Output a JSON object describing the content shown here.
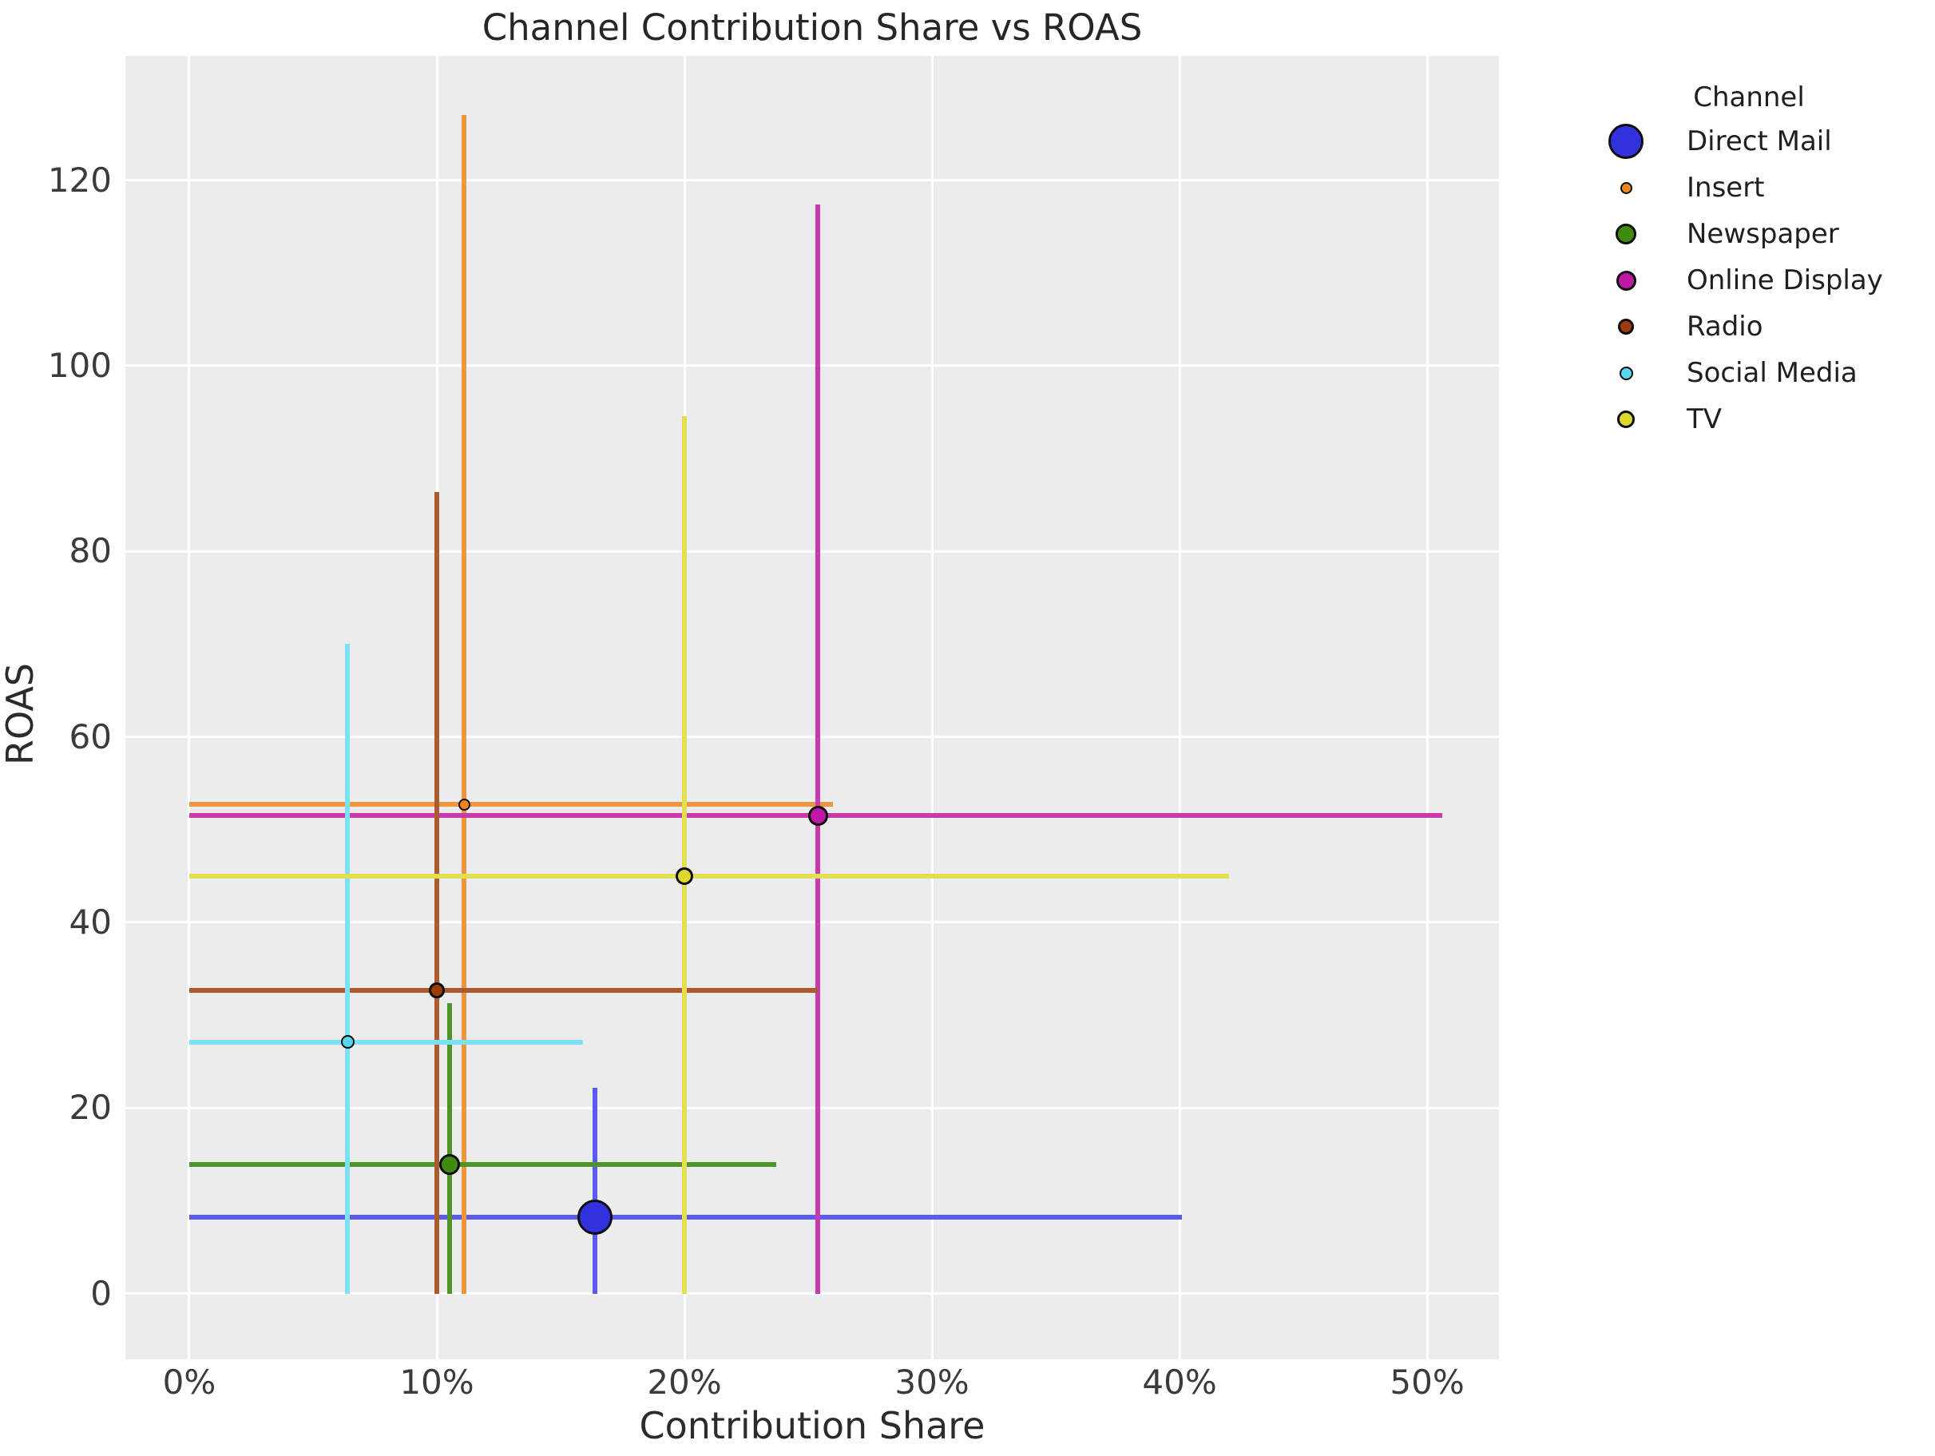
{
  "figure": {
    "background": "#ffffff",
    "plot_background": "#ececec",
    "grid_color": "#ffffff",
    "marker_edge_color": "#0d0d0d"
  },
  "chart_data": {
    "type": "scatter",
    "title": "Channel Contribution Share vs ROAS",
    "xlabel": "Contribution Share",
    "ylabel": "ROAS",
    "xlim": [
      -2.58,
      52.9
    ],
    "ylim": [
      -7.1,
      133.4
    ],
    "grid": true,
    "x_ticks": [
      {
        "value": 0,
        "label": "0%"
      },
      {
        "value": 10,
        "label": "10%"
      },
      {
        "value": 20,
        "label": "20%"
      },
      {
        "value": 30,
        "label": "30%"
      },
      {
        "value": 40,
        "label": "40%"
      },
      {
        "value": 50,
        "label": "50%"
      }
    ],
    "y_ticks": [
      {
        "value": 0,
        "label": "0"
      },
      {
        "value": 20,
        "label": "20"
      },
      {
        "value": 40,
        "label": "40"
      },
      {
        "value": 60,
        "label": "60"
      },
      {
        "value": 80,
        "label": "80"
      },
      {
        "value": 100,
        "label": "100"
      },
      {
        "value": 120,
        "label": "120"
      }
    ],
    "legend": {
      "title": "Channel",
      "position": "upper right outside"
    },
    "series": [
      {
        "name": "Direct Mail",
        "color": "#3232dd",
        "line_color": "#5a5af0",
        "x": 16.4,
        "y": 8.2,
        "x_err": [
          0,
          40.1
        ],
        "y_err": [
          0,
          22.2
        ],
        "marker_px": 44
      },
      {
        "name": "Insert",
        "color": "#ef861f",
        "line_color": "#f0953f",
        "x": 11.1,
        "y": 52.7,
        "x_err": [
          0,
          26.0
        ],
        "y_err": [
          0,
          127.0
        ],
        "marker_px": 15
      },
      {
        "name": "Newspaper",
        "color": "#3e8b0d",
        "line_color": "#4f9428",
        "x": 10.5,
        "y": 13.9,
        "x_err": [
          0,
          23.7
        ],
        "y_err": [
          0,
          31.3
        ],
        "marker_px": 26
      },
      {
        "name": "Online Display",
        "color": "#bf18a4",
        "line_color": "#c93bad",
        "x": 25.4,
        "y": 51.5,
        "x_err": [
          0,
          50.6
        ],
        "y_err": [
          0,
          117.4
        ],
        "marker_px": 25
      },
      {
        "name": "Radio",
        "color": "#9a3c0c",
        "line_color": "#ad5a2e",
        "x": 10.0,
        "y": 32.7,
        "x_err": [
          0,
          25.4
        ],
        "y_err": [
          0,
          86.4
        ],
        "marker_px": 20
      },
      {
        "name": "Social Media",
        "color": "#55d7ee",
        "line_color": "#7ce1f2",
        "x": 6.4,
        "y": 27.1,
        "x_err": [
          0,
          15.9
        ],
        "y_err": [
          0,
          70.0
        ],
        "marker_px": 17
      },
      {
        "name": "TV",
        "color": "#dcd92a",
        "line_color": "#e2df55",
        "x": 20.0,
        "y": 45.0,
        "x_err": [
          0,
          42.0
        ],
        "y_err": [
          0,
          94.6
        ],
        "marker_px": 22
      }
    ]
  }
}
